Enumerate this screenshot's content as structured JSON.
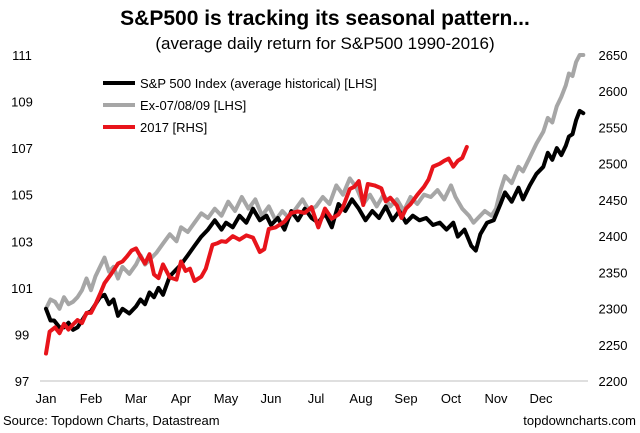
{
  "chart_data": {
    "type": "line",
    "title": "S&P500 is tracking its seasonal pattern...",
    "subtitle": "(average daily return for S&P500 1990-2016)",
    "source": "Source: Topdown Charts, Datastream",
    "watermark": "topdowncharts.com",
    "x_tick_labels": [
      "Jan",
      "Feb",
      "Mar",
      "Apr",
      "May",
      "Jun",
      "Jul",
      "Aug",
      "Sep",
      "Oct",
      "Nov",
      "Dec"
    ],
    "y_left": {
      "ticks": [
        97,
        99,
        101,
        103,
        105,
        107,
        109,
        111
      ],
      "range": [
        97,
        111
      ]
    },
    "y_right": {
      "ticks": [
        2200,
        2250,
        2300,
        2350,
        2400,
        2450,
        2500,
        2550,
        2600,
        2650
      ],
      "range": [
        2200,
        2650
      ]
    },
    "legend_position": "top-left",
    "series": [
      {
        "name": "S&P 500 Index (average historical) [LHS]",
        "axis": "left",
        "color": "#000000",
        "points": [
          [
            0,
            100.1
          ],
          [
            0.1,
            99.6
          ],
          [
            0.18,
            99.6
          ],
          [
            0.3,
            99.3
          ],
          [
            0.4,
            99.3
          ],
          [
            0.5,
            99.5
          ],
          [
            0.6,
            99.2
          ],
          [
            0.7,
            99.3
          ],
          [
            0.8,
            99.6
          ],
          [
            0.9,
            99.9
          ],
          [
            1.0,
            100.0
          ],
          [
            1.1,
            100.3
          ],
          [
            1.2,
            100.6
          ],
          [
            1.3,
            100.7
          ],
          [
            1.4,
            100.3
          ],
          [
            1.5,
            100.5
          ],
          [
            1.6,
            99.8
          ],
          [
            1.7,
            100.1
          ],
          [
            1.85,
            99.9
          ],
          [
            2.0,
            100.2
          ],
          [
            2.1,
            100.5
          ],
          [
            2.2,
            100.3
          ],
          [
            2.3,
            100.8
          ],
          [
            2.4,
            100.6
          ],
          [
            2.5,
            101.0
          ],
          [
            2.6,
            100.7
          ],
          [
            2.75,
            101.5
          ],
          [
            2.9,
            101.8
          ],
          [
            3.0,
            102.0
          ],
          [
            3.15,
            102.4
          ],
          [
            3.3,
            102.8
          ],
          [
            3.45,
            103.2
          ],
          [
            3.6,
            103.5
          ],
          [
            3.75,
            103.9
          ],
          [
            3.9,
            103.5
          ],
          [
            4.0,
            103.8
          ],
          [
            4.15,
            103.6
          ],
          [
            4.3,
            104.1
          ],
          [
            4.45,
            103.8
          ],
          [
            4.6,
            104.4
          ],
          [
            4.75,
            103.9
          ],
          [
            4.9,
            104.1
          ],
          [
            5.0,
            103.7
          ],
          [
            5.15,
            104.0
          ],
          [
            5.3,
            103.5
          ],
          [
            5.45,
            104.3
          ],
          [
            5.6,
            103.9
          ],
          [
            5.75,
            104.4
          ],
          [
            5.9,
            104.0
          ],
          [
            6.05,
            103.8
          ],
          [
            6.2,
            104.2
          ],
          [
            6.35,
            103.6
          ],
          [
            6.5,
            104.6
          ],
          [
            6.65,
            104.3
          ],
          [
            6.8,
            104.8
          ],
          [
            6.95,
            104.4
          ],
          [
            7.1,
            103.9
          ],
          [
            7.25,
            104.3
          ],
          [
            7.4,
            104.0
          ],
          [
            7.55,
            104.5
          ],
          [
            7.7,
            103.9
          ],
          [
            7.85,
            104.3
          ],
          [
            8.0,
            103.8
          ],
          [
            8.15,
            104.1
          ],
          [
            8.3,
            103.9
          ],
          [
            8.45,
            104.0
          ],
          [
            8.6,
            103.7
          ],
          [
            8.75,
            103.8
          ],
          [
            8.9,
            103.5
          ],
          [
            9.05,
            103.8
          ],
          [
            9.15,
            103.2
          ],
          [
            9.3,
            103.5
          ],
          [
            9.45,
            102.8
          ],
          [
            9.55,
            102.6
          ],
          [
            9.65,
            103.3
          ],
          [
            9.8,
            103.8
          ],
          [
            9.95,
            103.9
          ],
          [
            10.1,
            104.6
          ],
          [
            10.2,
            105.1
          ],
          [
            10.35,
            104.7
          ],
          [
            10.5,
            105.3
          ],
          [
            10.6,
            104.8
          ],
          [
            10.75,
            105.4
          ],
          [
            10.9,
            105.9
          ],
          [
            11.05,
            106.2
          ],
          [
            11.15,
            106.8
          ],
          [
            11.25,
            106.5
          ],
          [
            11.35,
            107.0
          ],
          [
            11.45,
            106.7
          ],
          [
            11.55,
            107.1
          ],
          [
            11.62,
            107.5
          ],
          [
            11.7,
            107.6
          ],
          [
            11.78,
            108.2
          ],
          [
            11.86,
            108.6
          ],
          [
            11.94,
            108.5
          ]
        ]
      },
      {
        "name": "Ex-07/08/09 [LHS]",
        "axis": "left",
        "color": "#a6a6a6",
        "points": [
          [
            0,
            100.1
          ],
          [
            0.1,
            100.5
          ],
          [
            0.2,
            100.4
          ],
          [
            0.3,
            100.1
          ],
          [
            0.4,
            100.6
          ],
          [
            0.5,
            100.3
          ],
          [
            0.6,
            100.4
          ],
          [
            0.7,
            100.6
          ],
          [
            0.8,
            100.9
          ],
          [
            0.9,
            101.4
          ],
          [
            1.0,
            100.9
          ],
          [
            1.1,
            101.5
          ],
          [
            1.2,
            101.9
          ],
          [
            1.3,
            102.3
          ],
          [
            1.4,
            101.7
          ],
          [
            1.5,
            101.9
          ],
          [
            1.6,
            101.4
          ],
          [
            1.7,
            101.9
          ],
          [
            1.85,
            101.6
          ],
          [
            2.0,
            102.0
          ],
          [
            2.1,
            102.4
          ],
          [
            2.2,
            102.0
          ],
          [
            2.3,
            102.2
          ],
          [
            2.45,
            102.5
          ],
          [
            2.6,
            102.9
          ],
          [
            2.75,
            103.3
          ],
          [
            2.9,
            103.0
          ],
          [
            3.0,
            103.6
          ],
          [
            3.15,
            103.4
          ],
          [
            3.3,
            103.8
          ],
          [
            3.45,
            104.2
          ],
          [
            3.6,
            104.0
          ],
          [
            3.75,
            104.4
          ],
          [
            3.9,
            104.1
          ],
          [
            4.05,
            104.7
          ],
          [
            4.2,
            104.3
          ],
          [
            4.35,
            104.9
          ],
          [
            4.5,
            104.4
          ],
          [
            4.65,
            104.8
          ],
          [
            4.8,
            104.1
          ],
          [
            4.95,
            104.5
          ],
          [
            5.1,
            103.9
          ],
          [
            5.25,
            104.3
          ],
          [
            5.4,
            104.0
          ],
          [
            5.55,
            104.4
          ],
          [
            5.7,
            104.8
          ],
          [
            5.85,
            104.3
          ],
          [
            6.0,
            104.5
          ],
          [
            6.15,
            104.9
          ],
          [
            6.3,
            104.6
          ],
          [
            6.45,
            105.4
          ],
          [
            6.6,
            105.0
          ],
          [
            6.75,
            105.7
          ],
          [
            6.9,
            105.3
          ],
          [
            7.05,
            104.6
          ],
          [
            7.2,
            105.0
          ],
          [
            7.35,
            104.5
          ],
          [
            7.5,
            105.0
          ],
          [
            7.65,
            104.5
          ],
          [
            7.8,
            104.8
          ],
          [
            7.95,
            104.3
          ],
          [
            8.1,
            104.9
          ],
          [
            8.25,
            104.6
          ],
          [
            8.4,
            105.0
          ],
          [
            8.55,
            104.9
          ],
          [
            8.7,
            105.2
          ],
          [
            8.85,
            104.8
          ],
          [
            9.0,
            105.4
          ],
          [
            9.1,
            104.9
          ],
          [
            9.25,
            104.4
          ],
          [
            9.4,
            104.1
          ],
          [
            9.5,
            103.8
          ],
          [
            9.6,
            104.0
          ],
          [
            9.75,
            104.3
          ],
          [
            9.9,
            104.1
          ],
          [
            10.0,
            104.4
          ],
          [
            10.1,
            105.2
          ],
          [
            10.2,
            105.8
          ],
          [
            10.35,
            105.5
          ],
          [
            10.5,
            106.2
          ],
          [
            10.6,
            106.0
          ],
          [
            10.75,
            106.6
          ],
          [
            10.9,
            107.2
          ],
          [
            11.05,
            107.7
          ],
          [
            11.15,
            108.3
          ],
          [
            11.25,
            108.1
          ],
          [
            11.35,
            108.8
          ],
          [
            11.45,
            109.2
          ],
          [
            11.55,
            109.7
          ],
          [
            11.62,
            110.2
          ],
          [
            11.7,
            110.1
          ],
          [
            11.78,
            110.7
          ],
          [
            11.86,
            111.0
          ],
          [
            11.94,
            111.0
          ]
        ]
      },
      {
        "name": "2017 [RHS]",
        "axis": "right",
        "color": "#e8141b",
        "points": [
          [
            0,
            2238
          ],
          [
            0.08,
            2268
          ],
          [
            0.2,
            2274
          ],
          [
            0.3,
            2266
          ],
          [
            0.4,
            2279
          ],
          [
            0.5,
            2271
          ],
          [
            0.6,
            2278
          ],
          [
            0.7,
            2284
          ],
          [
            0.8,
            2280
          ],
          [
            0.9,
            2294
          ],
          [
            1.0,
            2294
          ],
          [
            1.1,
            2306
          ],
          [
            1.2,
            2320
          ],
          [
            1.3,
            2335
          ],
          [
            1.45,
            2348
          ],
          [
            1.6,
            2362
          ],
          [
            1.7,
            2365
          ],
          [
            1.8,
            2372
          ],
          [
            1.9,
            2380
          ],
          [
            2.0,
            2383
          ],
          [
            2.1,
            2372
          ],
          [
            2.2,
            2362
          ],
          [
            2.3,
            2375
          ],
          [
            2.4,
            2347
          ],
          [
            2.5,
            2342
          ],
          [
            2.6,
            2361
          ],
          [
            2.75,
            2343
          ],
          [
            2.9,
            2340
          ],
          [
            3.0,
            2365
          ],
          [
            3.1,
            2352
          ],
          [
            3.2,
            2355
          ],
          [
            3.3,
            2338
          ],
          [
            3.45,
            2344
          ],
          [
            3.55,
            2355
          ],
          [
            3.7,
            2388
          ],
          [
            3.8,
            2390
          ],
          [
            3.9,
            2393
          ],
          [
            4.0,
            2392
          ],
          [
            4.15,
            2400
          ],
          [
            4.3,
            2395
          ],
          [
            4.45,
            2401
          ],
          [
            4.6,
            2398
          ],
          [
            4.75,
            2378
          ],
          [
            4.85,
            2382
          ],
          [
            4.95,
            2410
          ],
          [
            5.1,
            2412
          ],
          [
            5.3,
            2420
          ],
          [
            5.45,
            2432
          ],
          [
            5.6,
            2434
          ],
          [
            5.75,
            2432
          ],
          [
            5.9,
            2440
          ],
          [
            6.05,
            2412
          ],
          [
            6.2,
            2438
          ],
          [
            6.35,
            2424
          ],
          [
            6.5,
            2430
          ],
          [
            6.6,
            2440
          ],
          [
            6.75,
            2465
          ],
          [
            6.85,
            2468
          ],
          [
            6.95,
            2476
          ],
          [
            7.05,
            2443
          ],
          [
            7.15,
            2472
          ],
          [
            7.3,
            2470
          ],
          [
            7.45,
            2466
          ],
          [
            7.55,
            2448
          ],
          [
            7.65,
            2453
          ],
          [
            7.8,
            2442
          ],
          [
            7.9,
            2425
          ],
          [
            8.0,
            2438
          ],
          [
            8.1,
            2444
          ],
          [
            8.25,
            2457
          ],
          [
            8.4,
            2468
          ],
          [
            8.5,
            2478
          ],
          [
            8.6,
            2496
          ],
          [
            8.75,
            2500
          ],
          [
            8.85,
            2504
          ],
          [
            8.95,
            2507
          ],
          [
            9.05,
            2496
          ],
          [
            9.15,
            2504
          ],
          [
            9.25,
            2508
          ],
          [
            9.35,
            2523
          ]
        ]
      }
    ]
  }
}
